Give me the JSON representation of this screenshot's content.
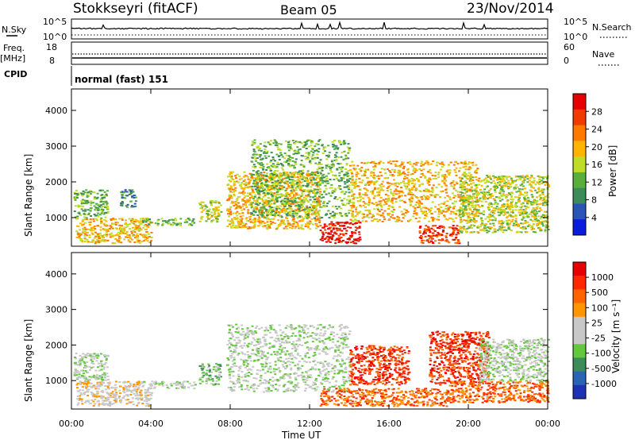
{
  "header": {
    "station": "Stokkseyri (fitACF)",
    "beam": "Beam 05",
    "date": "23/Nov/2014"
  },
  "top_panels": {
    "nsky_label": "N.Sky",
    "nsky_ticks": [
      "10^5",
      "10^0"
    ],
    "nsearch_label": "N.Search",
    "nsearch_ticks": [
      "10^5",
      "10^0"
    ],
    "freq_label": "Freq.",
    "freq_unit": "[MHz]",
    "freq_ticks": [
      "18",
      "8"
    ],
    "nave_label": "Nave",
    "nave_ticks": [
      "60",
      "0"
    ],
    "cpid_label": "CPID",
    "cpid_value": "normal (fast) 151"
  },
  "colors": {
    "power": [
      "#0a1cdc",
      "#2a55b4",
      "#3c8c5a",
      "#5aaf3c",
      "#bedc28",
      "#ffb400",
      "#ff7800",
      "#f03c00",
      "#e60000"
    ],
    "velocity": [
      "#1e32b4",
      "#2a64b4",
      "#3c8c5a",
      "#64c83c",
      "#c8c8c8",
      "#c8c8c8",
      "#ff9600",
      "#ff6400",
      "#ff2800",
      "#e60000"
    ]
  },
  "chart_data": [
    {
      "type": "heatmap",
      "panel": "power",
      "ylabel": "Slant Range [km]",
      "yticks": [
        "1000",
        "2000",
        "3000",
        "4000"
      ],
      "ylim": [
        200,
        4600
      ],
      "xlim": [
        0,
        24
      ],
      "colorbar_label": "Power [dB]",
      "colorbar_ticks": [
        "28",
        "24",
        "20",
        "16",
        "12",
        "8",
        "4"
      ],
      "colorbar_range": [
        0,
        32
      ],
      "echo_regions": [
        {
          "t0": 0.1,
          "t1": 1.8,
          "r0": 1000,
          "r1": 1800,
          "level": 3
        },
        {
          "t0": 0.2,
          "t1": 4.0,
          "r0": 300,
          "r1": 1000,
          "level": 5
        },
        {
          "t0": 2.4,
          "t1": 3.2,
          "r0": 1300,
          "r1": 1800,
          "level": 2
        },
        {
          "t0": 3.5,
          "t1": 6.2,
          "r0": 800,
          "r1": 1000,
          "level": 3
        },
        {
          "t0": 6.4,
          "t1": 7.5,
          "r0": 900,
          "r1": 1500,
          "level": 4
        },
        {
          "t0": 7.8,
          "t1": 12.5,
          "r0": 700,
          "r1": 2300,
          "level": 5
        },
        {
          "t0": 9.0,
          "t1": 14.0,
          "r0": 1000,
          "r1": 3200,
          "level": 3
        },
        {
          "t0": 12.5,
          "t1": 14.5,
          "r0": 300,
          "r1": 900,
          "level": 8
        },
        {
          "t0": 14.0,
          "t1": 20.5,
          "r0": 900,
          "r1": 2600,
          "level": 5
        },
        {
          "t0": 17.5,
          "t1": 19.5,
          "r0": 300,
          "r1": 800,
          "level": 7
        },
        {
          "t0": 19.5,
          "t1": 24.0,
          "r0": 600,
          "r1": 2200,
          "level": 4
        }
      ]
    },
    {
      "type": "heatmap",
      "panel": "velocity",
      "xlabel": "Time UT",
      "ylabel": "Slant Range [km]",
      "xticks": [
        "00:00",
        "04:00",
        "08:00",
        "12:00",
        "16:00",
        "20:00",
        "00:00"
      ],
      "yticks": [
        "1000",
        "2000",
        "3000",
        "4000"
      ],
      "ylim": [
        200,
        4600
      ],
      "xlim": [
        0,
        24
      ],
      "colorbar_label": "Velocity [m s⁻¹]",
      "colorbar_ticks": [
        "1000",
        "500",
        "100",
        "25",
        "-25",
        "-100",
        "-500",
        "-1000"
      ],
      "echo_regions": [
        {
          "t0": 0.1,
          "t1": 1.8,
          "r0": 1000,
          "r1": 1800,
          "level": 4
        },
        {
          "t0": 0.2,
          "t1": 4.0,
          "r0": 300,
          "r1": 1000,
          "level": 5
        },
        {
          "t0": 3.5,
          "t1": 6.2,
          "r0": 800,
          "r1": 1000,
          "level": 4
        },
        {
          "t0": 6.4,
          "t1": 7.5,
          "r0": 900,
          "r1": 1500,
          "level": 3
        },
        {
          "t0": 7.8,
          "t1": 14.0,
          "r0": 700,
          "r1": 2600,
          "level": 4
        },
        {
          "t0": 12.5,
          "t1": 19.0,
          "r0": 300,
          "r1": 800,
          "level": 7
        },
        {
          "t0": 14.0,
          "t1": 17.0,
          "r0": 900,
          "r1": 2000,
          "level": 8
        },
        {
          "t0": 18.0,
          "t1": 21.0,
          "r0": 900,
          "r1": 2400,
          "level": 8
        },
        {
          "t0": 19.0,
          "t1": 24.0,
          "r0": 400,
          "r1": 1000,
          "level": 7
        },
        {
          "t0": 20.5,
          "t1": 24.0,
          "r0": 1000,
          "r1": 2200,
          "level": 4
        }
      ]
    }
  ]
}
